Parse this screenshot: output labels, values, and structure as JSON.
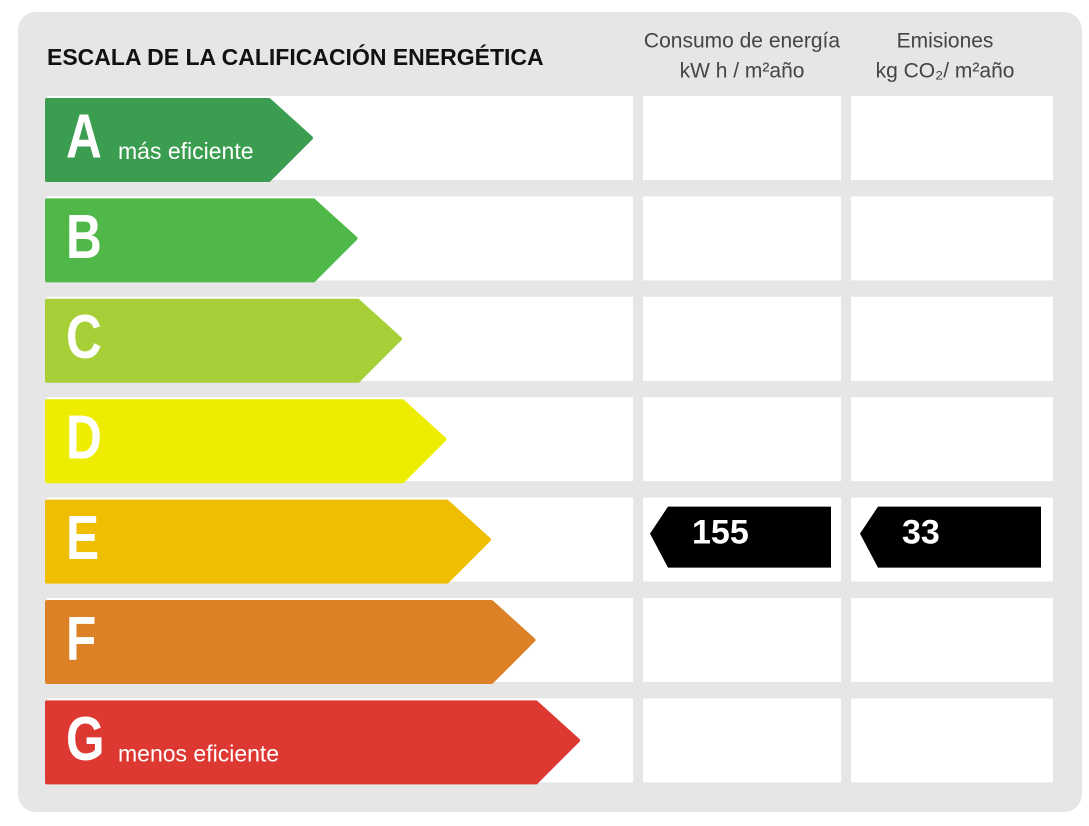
{
  "title": "ESCALA DE LA CALIFICACIÓN ENERGÉTICA",
  "columns": [
    {
      "title": "Consumo de energía",
      "unit": "kW h / m²año"
    },
    {
      "title": "Emisiones",
      "unit": "kg CO₂/ m²año"
    }
  ],
  "rows": [
    {
      "letter": "A",
      "note": "más eficiente",
      "color": "#3a9d4f"
    },
    {
      "letter": "B",
      "color": "#50b848"
    },
    {
      "letter": "C",
      "color": "#a6cf38"
    },
    {
      "letter": "D",
      "color": "#eeec00"
    },
    {
      "letter": "E",
      "color": "#efbe00",
      "consumption": 155,
      "emissions": 33
    },
    {
      "letter": "F",
      "color": "#dc8126"
    },
    {
      "letter": "G",
      "note": "menos eficiente",
      "color": "#dd3832"
    }
  ]
}
